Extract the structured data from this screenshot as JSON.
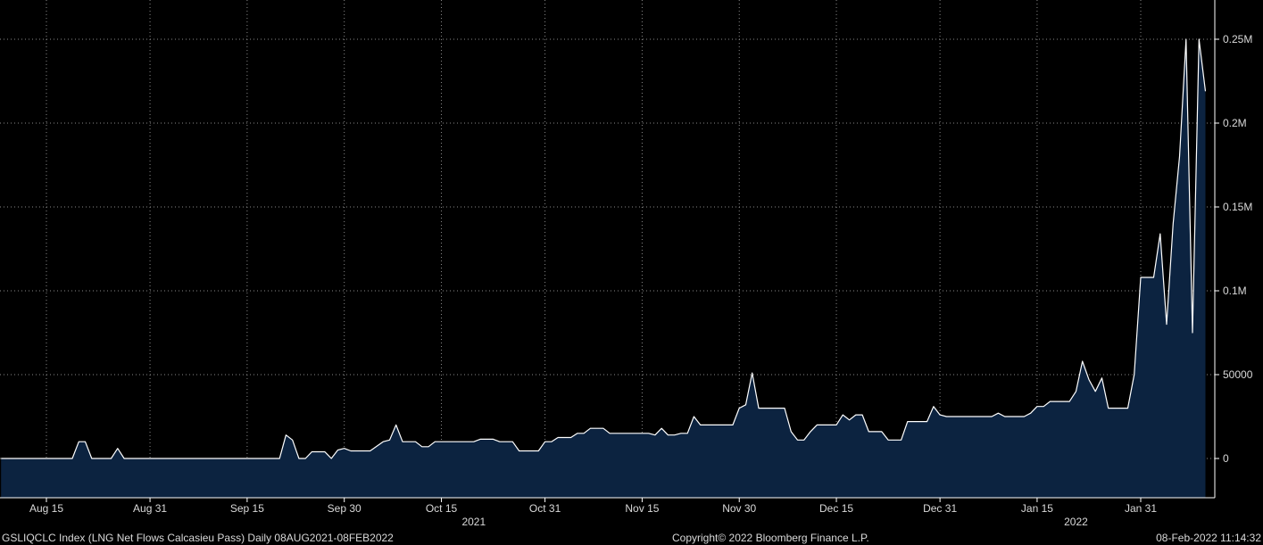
{
  "footer": {
    "left": "GSLIQCLC Index (LNG Net Flows Calcasieu Pass)  Daily 08AUG2021-08FEB2022",
    "center": "Copyright© 2022 Bloomberg Finance L.P.",
    "right": "08-Feb-2022 11:14:32"
  },
  "colors": {
    "background": "#000000",
    "area_fill": "#0c2340",
    "line": "#ffffff",
    "grid": "#8a8a8a"
  },
  "chart_data": {
    "type": "area",
    "title": "",
    "xlabel": "",
    "ylabel": "",
    "x_range": [
      "2021-08-08",
      "2022-02-08"
    ],
    "ylim": [
      -12000,
      252000
    ],
    "grid": true,
    "y_axis_position": "right",
    "x_ticks": [
      {
        "date": "2021-08-15",
        "label": "Aug 15"
      },
      {
        "date": "2021-08-31",
        "label": "Aug 31"
      },
      {
        "date": "2021-09-15",
        "label": "Sep 15"
      },
      {
        "date": "2021-09-30",
        "label": "Sep 30"
      },
      {
        "date": "2021-10-15",
        "label": "Oct 15"
      },
      {
        "date": "2021-10-31",
        "label": "Oct 31"
      },
      {
        "date": "2021-11-15",
        "label": "Nov 15"
      },
      {
        "date": "2021-11-30",
        "label": "Nov 30"
      },
      {
        "date": "2021-12-15",
        "label": "Dec 15"
      },
      {
        "date": "2021-12-31",
        "label": "Dec 31"
      },
      {
        "date": "2022-01-15",
        "label": "Jan 15"
      },
      {
        "date": "2022-01-31",
        "label": "Jan 31"
      }
    ],
    "year_labels": [
      {
        "date": "2021-10-20",
        "label": "2021"
      },
      {
        "date": "2022-01-21",
        "label": "2022"
      }
    ],
    "y_ticks": [
      {
        "value": 0,
        "label": "0"
      },
      {
        "value": 50000,
        "label": "50000"
      },
      {
        "value": 100000,
        "label": "0.1M"
      },
      {
        "value": 150000,
        "label": "0.15M"
      },
      {
        "value": 200000,
        "label": "0.2M"
      },
      {
        "value": 250000,
        "label": "0.25M"
      }
    ],
    "series": [
      {
        "points": [
          [
            "2021-08-08",
            0
          ],
          [
            "2021-08-19",
            0
          ],
          [
            "2021-08-20",
            10000
          ],
          [
            "2021-08-21",
            10000
          ],
          [
            "2021-08-22",
            0
          ],
          [
            "2021-08-25",
            0
          ],
          [
            "2021-08-26",
            6000
          ],
          [
            "2021-08-27",
            0
          ],
          [
            "2021-09-20",
            0
          ],
          [
            "2021-09-21",
            14000
          ],
          [
            "2021-09-22",
            11000
          ],
          [
            "2021-09-23",
            0
          ],
          [
            "2021-09-24",
            0
          ],
          [
            "2021-09-25",
            4000
          ],
          [
            "2021-09-27",
            4000
          ],
          [
            "2021-09-28",
            0
          ],
          [
            "2021-09-29",
            5000
          ],
          [
            "2021-09-30",
            6000
          ],
          [
            "2021-10-01",
            4500
          ],
          [
            "2021-10-04",
            4500
          ],
          [
            "2021-10-06",
            10000
          ],
          [
            "2021-10-07",
            11000
          ],
          [
            "2021-10-08",
            20000
          ],
          [
            "2021-10-09",
            10000
          ],
          [
            "2021-10-11",
            10000
          ],
          [
            "2021-10-12",
            7000
          ],
          [
            "2021-10-13",
            7000
          ],
          [
            "2021-10-14",
            10000
          ],
          [
            "2021-10-20",
            10000
          ],
          [
            "2021-10-21",
            11500
          ],
          [
            "2021-10-23",
            11500
          ],
          [
            "2021-10-24",
            10000
          ],
          [
            "2021-10-26",
            10000
          ],
          [
            "2021-10-27",
            4500
          ],
          [
            "2021-10-30",
            4500
          ],
          [
            "2021-10-31",
            10000
          ],
          [
            "2021-11-01",
            10000
          ],
          [
            "2021-11-02",
            12500
          ],
          [
            "2021-11-04",
            12500
          ],
          [
            "2021-11-05",
            15000
          ],
          [
            "2021-11-06",
            15000
          ],
          [
            "2021-11-07",
            18000
          ],
          [
            "2021-11-09",
            18000
          ],
          [
            "2021-11-10",
            15000
          ],
          [
            "2021-11-16",
            15000
          ],
          [
            "2021-11-17",
            14000
          ],
          [
            "2021-11-18",
            18000
          ],
          [
            "2021-11-19",
            14000
          ],
          [
            "2021-11-20",
            14000
          ],
          [
            "2021-11-21",
            15000
          ],
          [
            "2021-11-22",
            15000
          ],
          [
            "2021-11-23",
            25000
          ],
          [
            "2021-11-24",
            20000
          ],
          [
            "2021-11-29",
            20000
          ],
          [
            "2021-11-30",
            30000
          ],
          [
            "2021-12-01",
            32000
          ],
          [
            "2021-12-02",
            51000
          ],
          [
            "2021-12-03",
            30000
          ],
          [
            "2021-12-07",
            30000
          ],
          [
            "2021-12-08",
            16000
          ],
          [
            "2021-12-09",
            11000
          ],
          [
            "2021-12-10",
            11000
          ],
          [
            "2021-12-11",
            16000
          ],
          [
            "2021-12-12",
            20000
          ],
          [
            "2021-12-15",
            20000
          ],
          [
            "2021-12-16",
            26000
          ],
          [
            "2021-12-17",
            23000
          ],
          [
            "2021-12-18",
            26000
          ],
          [
            "2021-12-19",
            26000
          ],
          [
            "2021-12-20",
            16000
          ],
          [
            "2021-12-22",
            16000
          ],
          [
            "2021-12-23",
            11000
          ],
          [
            "2021-12-25",
            11000
          ],
          [
            "2021-12-26",
            22000
          ],
          [
            "2021-12-29",
            22000
          ],
          [
            "2021-12-30",
            31000
          ],
          [
            "2021-12-31",
            26000
          ],
          [
            "2022-01-01",
            25000
          ],
          [
            "2022-01-08",
            25000
          ],
          [
            "2022-01-09",
            27000
          ],
          [
            "2022-01-10",
            25000
          ],
          [
            "2022-01-13",
            25000
          ],
          [
            "2022-01-14",
            27000
          ],
          [
            "2022-01-15",
            31000
          ],
          [
            "2022-01-16",
            31000
          ],
          [
            "2022-01-17",
            34000
          ],
          [
            "2022-01-20",
            34000
          ],
          [
            "2022-01-21",
            40000
          ],
          [
            "2022-01-22",
            58000
          ],
          [
            "2022-01-23",
            47000
          ],
          [
            "2022-01-24",
            40000
          ],
          [
            "2022-01-25",
            48000
          ],
          [
            "2022-01-26",
            30000
          ],
          [
            "2022-01-29",
            30000
          ],
          [
            "2022-01-30",
            50000
          ],
          [
            "2022-01-31",
            108000
          ],
          [
            "2022-02-01",
            108000
          ],
          [
            "2022-02-02",
            108000
          ],
          [
            "2022-02-03",
            134000
          ],
          [
            "2022-02-04",
            80000
          ],
          [
            "2022-02-05",
            140000
          ],
          [
            "2022-02-06",
            180000
          ],
          [
            "2022-02-07",
            250000
          ],
          [
            "2022-02-08",
            75000
          ],
          [
            "2022-02-09",
            250000
          ],
          [
            "2022-02-10",
            219000
          ]
        ]
      }
    ]
  }
}
